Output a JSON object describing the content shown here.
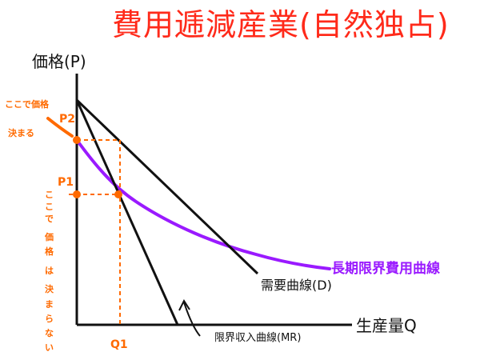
{
  "title": "費用逓減産業(自然独占)",
  "axes": {
    "y_label": "価格(P)",
    "x_label": "生産量Q"
  },
  "ticks": {
    "p2": "P2",
    "p1": "P1",
    "q1": "Q1"
  },
  "curves": {
    "lrac": "長期限界費用曲線",
    "demand": "需要曲線(D)",
    "mr": "限界収入曲線(MR)"
  },
  "notes": {
    "price_here_1": "ここで価格",
    "price_here_2": "決まる",
    "price_not_decided": [
      "こ",
      "こ",
      "で",
      "価",
      "格",
      "は",
      "決",
      "ま",
      "ら",
      "な",
      "い"
    ]
  },
  "colors": {
    "title": "#ff2a1a",
    "orange": "#ff6a00",
    "purple": "#9a1aff",
    "ink": "#111111"
  }
}
